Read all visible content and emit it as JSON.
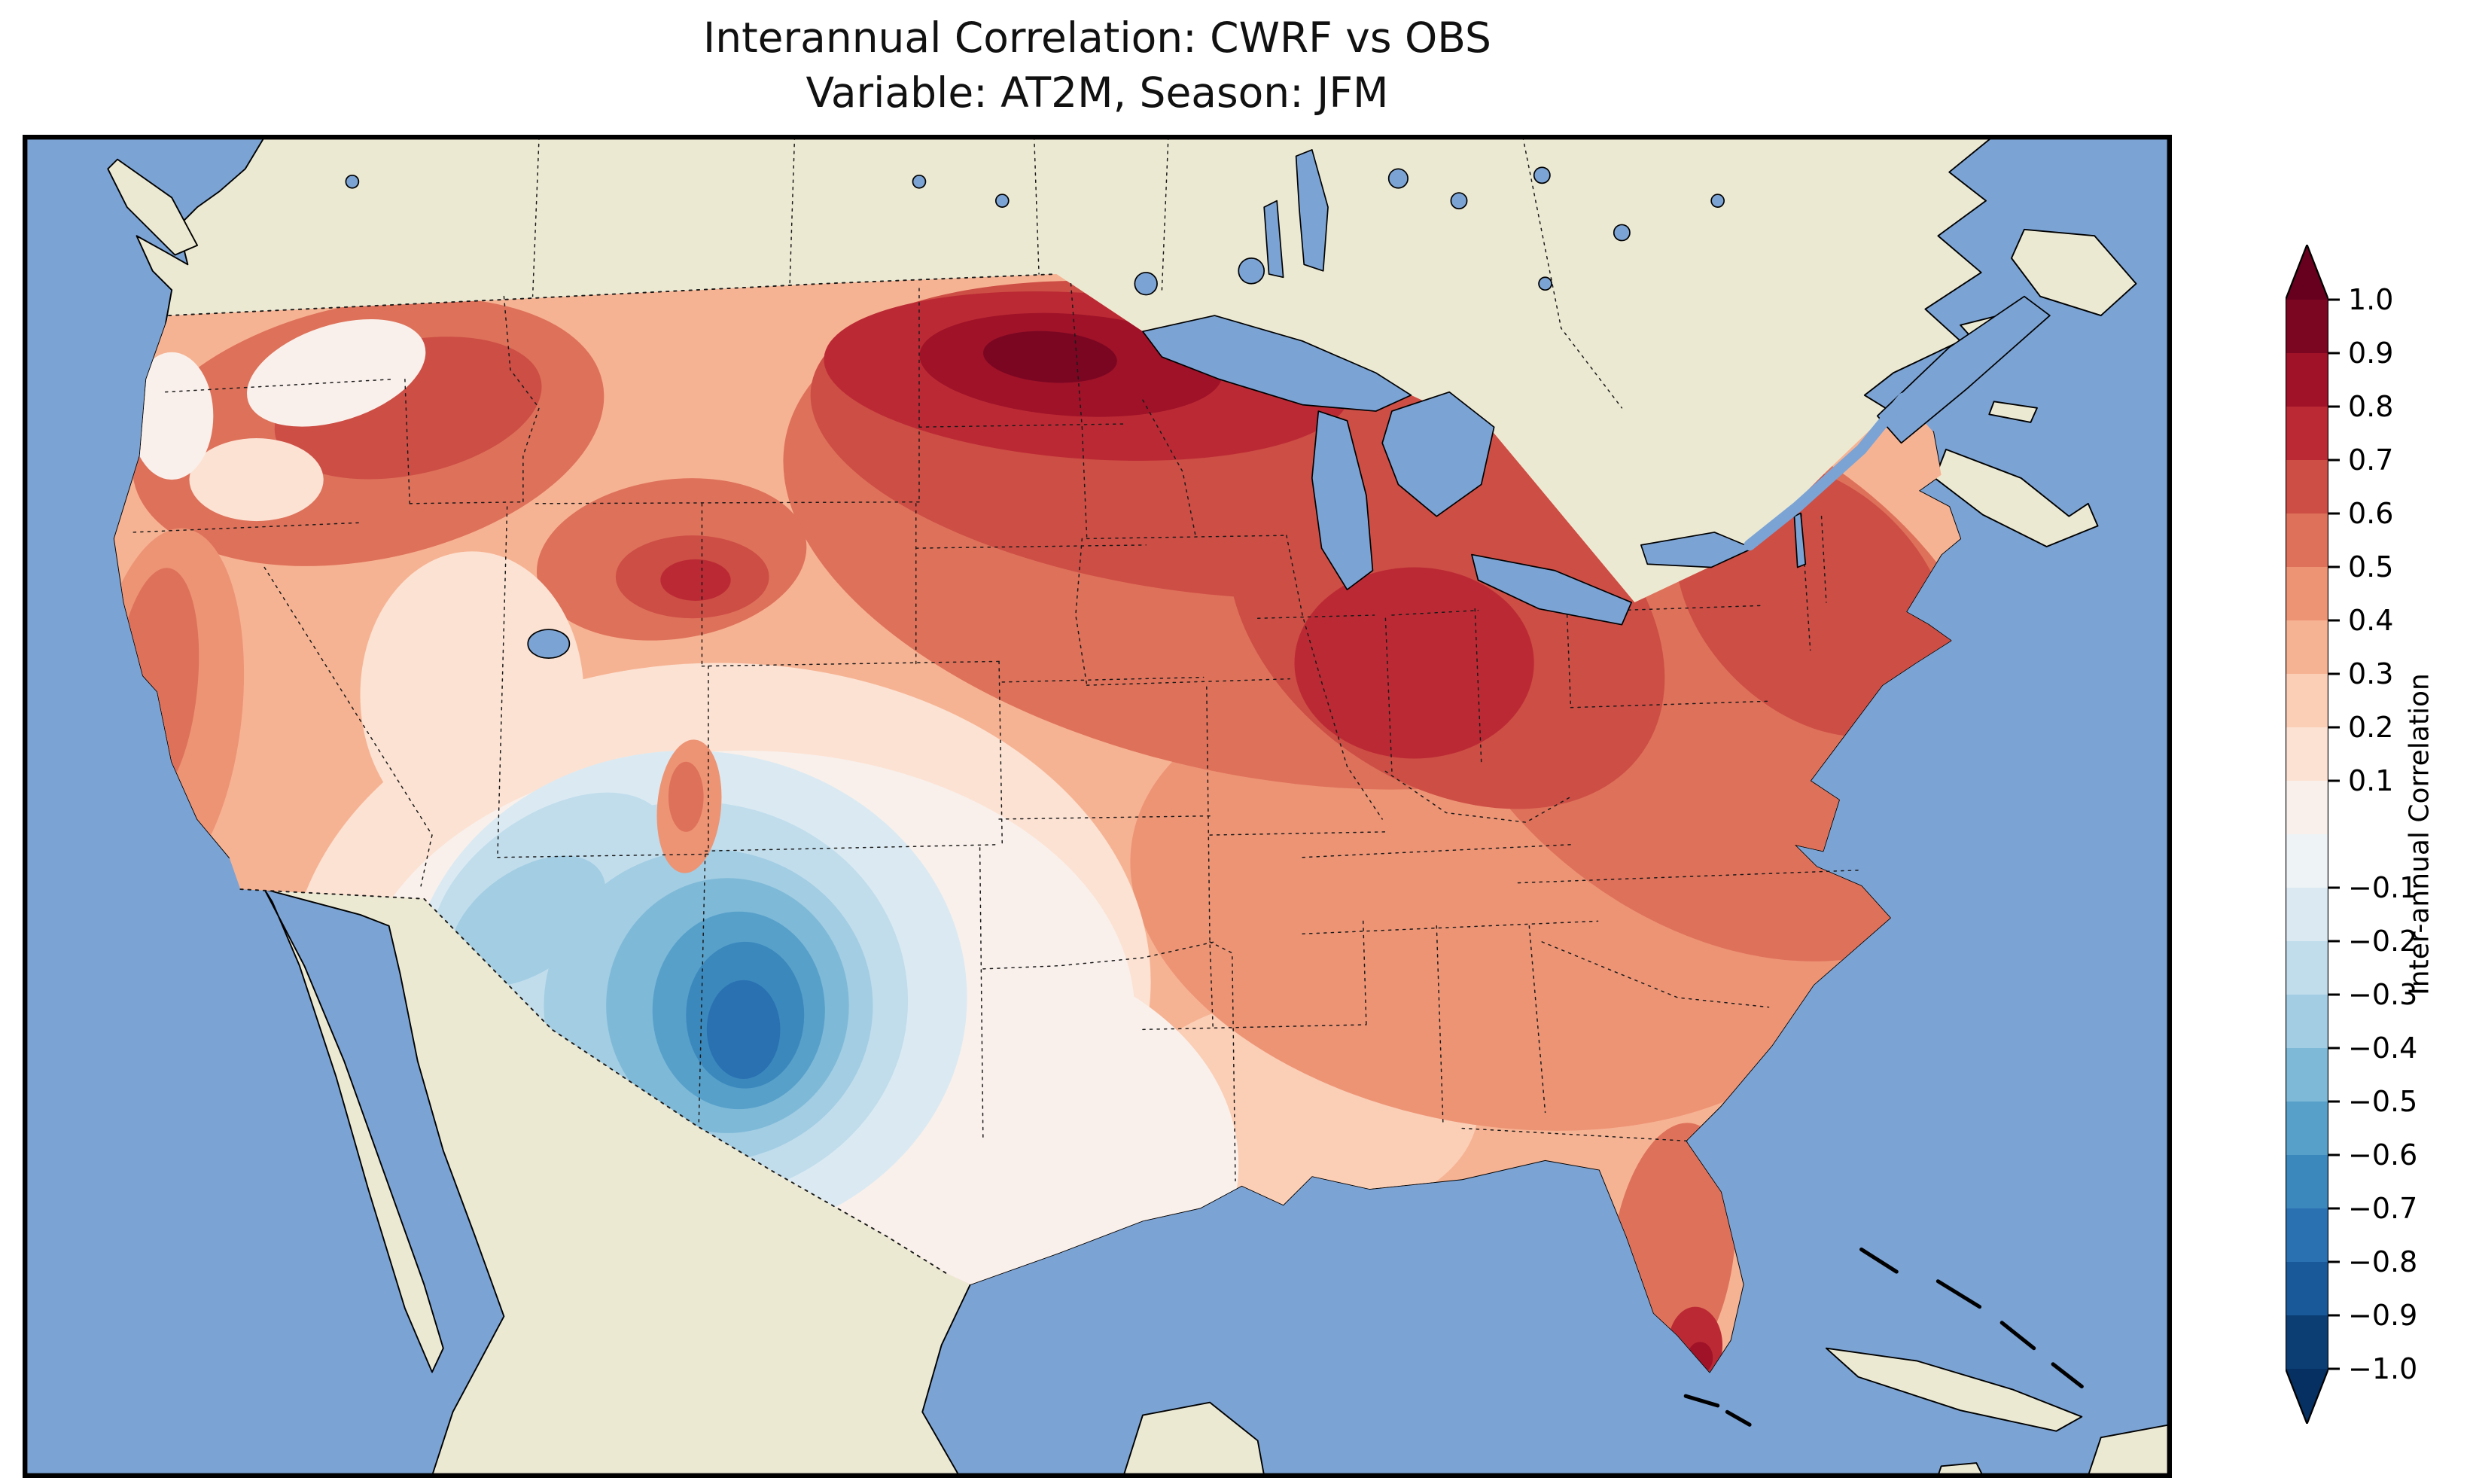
{
  "figure": {
    "title_line1": "Interannual Correlation: CWRF vs OBS",
    "title_line2": "Variable: AT2M, Season: JFM"
  },
  "map": {
    "ocean_color": "#7ba3d4",
    "land_color": "#ece9d3",
    "coastline_color": "#000000",
    "us_base_fill": "#f6b393",
    "border_style": "dotted black state and national boundaries",
    "features": [
      "Contiguous United States",
      "Canada",
      "Mexico",
      "Baja California",
      "Great Lakes",
      "Great Salt Lake",
      "Florida",
      "Cuba",
      "Bahamas",
      "Newfoundland",
      "Nova Scotia",
      "Yucatan"
    ]
  },
  "colorbar": {
    "label": "Inter-annual Correlation",
    "orientation": "vertical",
    "tick_labels": [
      "1.0",
      "0.9",
      "0.8",
      "0.7",
      "0.6",
      "0.5",
      "0.4",
      "0.3",
      "0.2",
      "0.1",
      "−0.1",
      "−0.2",
      "−0.3",
      "−0.4",
      "−0.5",
      "−0.6",
      "−0.7",
      "−0.8",
      "−0.9",
      "−1.0"
    ],
    "segment_colors": [
      "#7a0622",
      "#9f1228",
      "#bb2a34",
      "#cd4e45",
      "#de715a",
      "#ed9475",
      "#f6b393",
      "#fbceb6",
      "#fce2d3",
      "#f9f0eb",
      "#eef3f5",
      "#dbeaf2",
      "#c1ddec",
      "#a2cde3",
      "#7eb9d7",
      "#57a0ca",
      "#3b88bd",
      "#2a71b2",
      "#1a5999",
      "#0c3e74"
    ],
    "over_color": "#67001f",
    "under_color": "#053061"
  },
  "chart_data": {
    "type": "heatmap",
    "subtype": "filled-contour-map",
    "title": "Interannual Correlation: CWRF vs OBS",
    "subtitle": "Variable: AT2M, Season: JFM",
    "model": "CWRF",
    "reference": "OBS",
    "variable": "AT2M",
    "season": "JFM",
    "domain": "Contiguous United States",
    "colorbar_label": "Inter-annual Correlation",
    "value_range": [
      -1.0,
      1.0
    ],
    "contour_interval": 0.1,
    "colormap": "RdBu reversed (red = positive correlation, blue = negative correlation), extended arrows at both ends",
    "regions": [
      {
        "region": "Pacific Northwest coast (WA/OR)",
        "approx_correlation": 0.6
      },
      {
        "region": "Interior Washington/Oregon (white patches)",
        "approx_correlation": 0.0
      },
      {
        "region": "Idaho / western Montana",
        "approx_correlation": 0.5
      },
      {
        "region": "Central Montana local maximum",
        "approx_correlation": 0.7
      },
      {
        "region": "North Dakota / Minnesota border (strongest positive core)",
        "approx_correlation": 0.85
      },
      {
        "region": "Upper Midwest (MN/WI/Dakotas)",
        "approx_correlation": 0.7
      },
      {
        "region": "Michigan / Great Lakes",
        "approx_correlation": 0.7
      },
      {
        "region": "Northeast (NY/PA/New England)",
        "approx_correlation": 0.55
      },
      {
        "region": "Mid-Atlantic / Ohio Valley",
        "approx_correlation": 0.55
      },
      {
        "region": "Southeast (TN/GA/Carolinas)",
        "approx_correlation": 0.45
      },
      {
        "region": "Gulf Coast (LA/MS/AL)",
        "approx_correlation": 0.3
      },
      {
        "region": "Florida peninsula",
        "approx_correlation": 0.55
      },
      {
        "region": "South Florida tip (local maximum)",
        "approx_correlation": 0.8
      },
      {
        "region": "California coast",
        "approx_correlation": 0.45
      },
      {
        "region": "Great Basin (NV/UT)",
        "approx_correlation": 0.1
      },
      {
        "region": "Colorado / New Mexico negative core",
        "approx_correlation": -0.75
      },
      {
        "region": "Four Corners vicinity",
        "approx_correlation": -0.4
      },
      {
        "region": "Small positive pocket in southern Colorado mountains",
        "approx_correlation": 0.4
      },
      {
        "region": "Texas / Oklahoma / Southern Plains",
        "approx_correlation": 0.0
      },
      {
        "region": "Central Plains (KS/NE)",
        "approx_correlation": 0.3
      }
    ]
  }
}
